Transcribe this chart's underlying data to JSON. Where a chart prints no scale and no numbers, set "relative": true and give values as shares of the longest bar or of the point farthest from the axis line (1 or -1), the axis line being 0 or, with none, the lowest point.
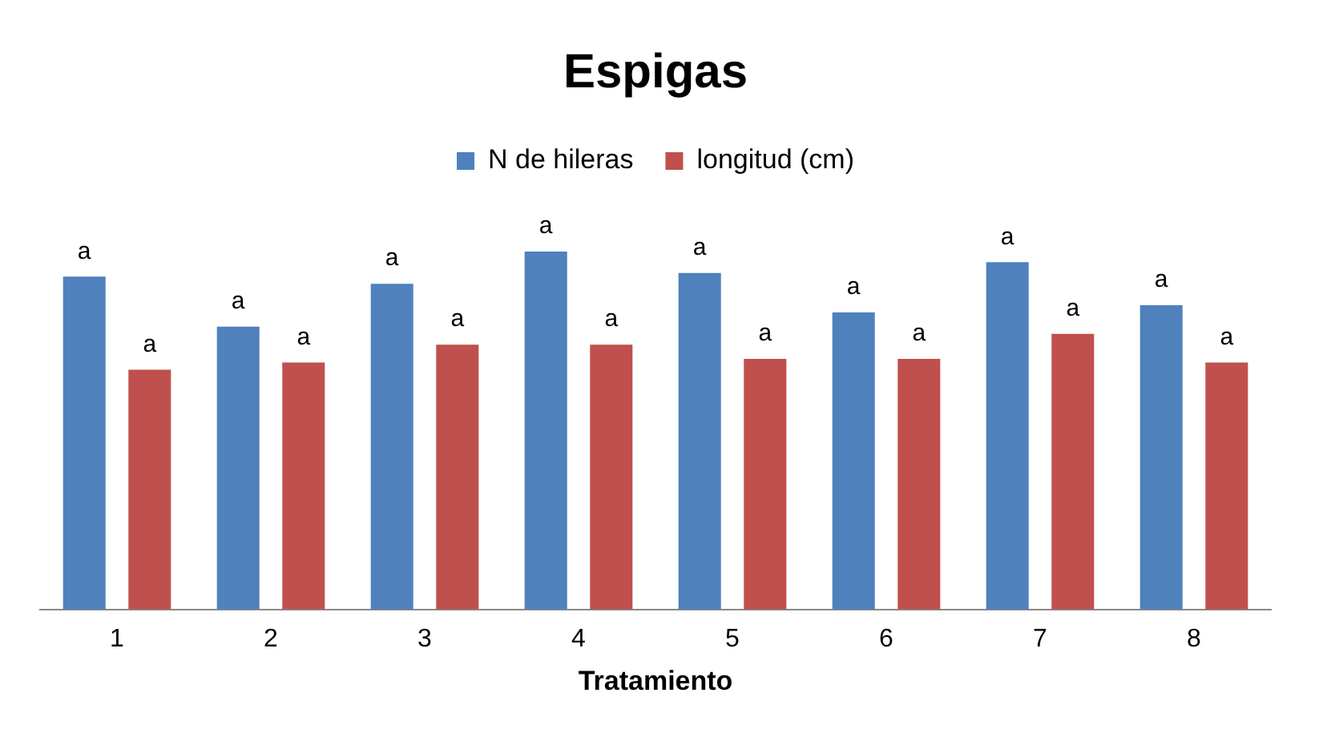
{
  "chart_data": {
    "type": "bar",
    "title": "Espigas",
    "xlabel": "Tratamiento",
    "categories": [
      "1",
      "2",
      "3",
      "4",
      "5",
      "6",
      "7",
      "8"
    ],
    "relative": true,
    "legend": "top",
    "grid": false,
    "series": [
      {
        "name": "N de hileras",
        "color": "#4f81bd",
        "values": [
          0.93,
          0.79,
          0.91,
          1,
          0.94,
          0.83,
          0.97,
          0.85
        ]
      },
      {
        "name": "longitud (cm)",
        "color": "#c0504d",
        "values": [
          0.67,
          0.69,
          0.74,
          0.74,
          0.7,
          0.7,
          0.77,
          0.69
        ]
      }
    ],
    "annotations": [
      "a",
      "a",
      "a",
      "a",
      "a",
      "a",
      "a",
      "a",
      "a",
      "a",
      "a",
      "a",
      "a",
      "a",
      "a",
      "a"
    ]
  }
}
